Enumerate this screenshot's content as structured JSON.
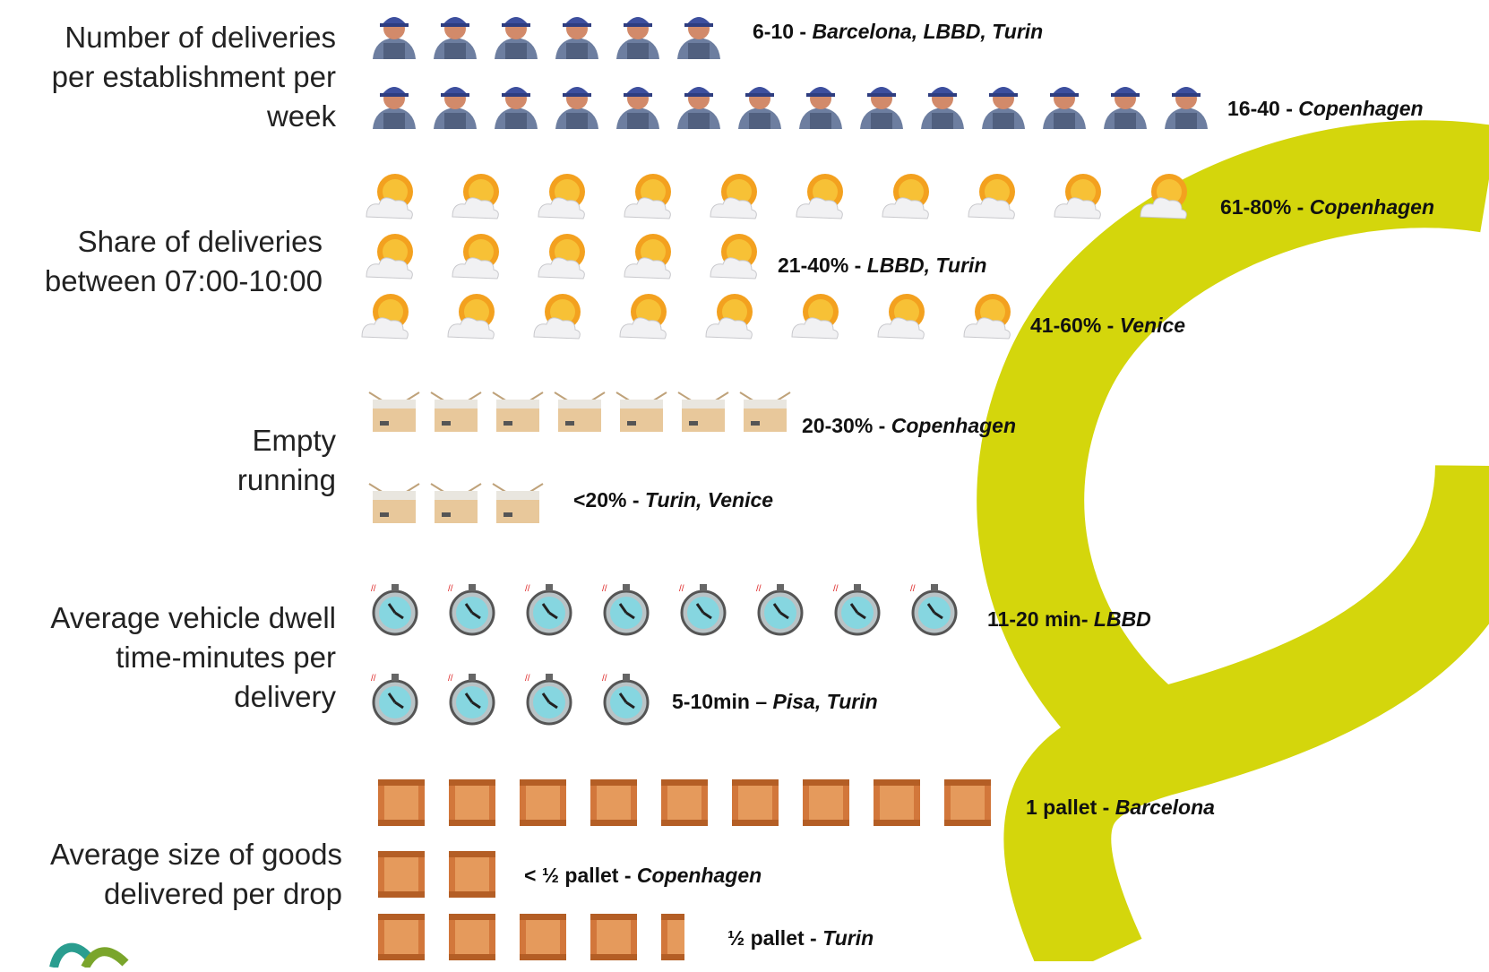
{
  "rows": [
    {
      "label": "Number of deliveries per establishment per week",
      "icon": "delivery-man-icon",
      "groups": [
        {
          "count": 6,
          "range": "6-10",
          "sep": " - ",
          "cities": "Barcelona, LBBD, Turin"
        },
        {
          "count": 14,
          "range": "16-40",
          "sep": " - ",
          "cities": "Copenhagen"
        }
      ]
    },
    {
      "label": "Share of deliveries between 07:00-10:00",
      "icon": "sun-cloud-icon",
      "groups": [
        {
          "count": 10,
          "range": "61-80%",
          "sep": " - ",
          "cities": "Copenhagen"
        },
        {
          "count": 5,
          "range": "21-40%",
          "sep": " - ",
          "cities": "LBBD, Turin"
        },
        {
          "count": 8,
          "range": "41-60%",
          "sep": " - ",
          "cities": "Venice"
        }
      ]
    },
    {
      "label": "Empty running",
      "icon": "empty-box-icon",
      "groups": [
        {
          "count": 7,
          "range": "20-30%",
          "sep": " - ",
          "cities": "Copenhagen"
        },
        {
          "count": 3,
          "range": "<20%",
          "sep": " - ",
          "cities": "Turin, Venice"
        }
      ]
    },
    {
      "label": "Average vehicle dwell time-minutes per delivery",
      "icon": "stopwatch-icon",
      "groups": [
        {
          "count": 8,
          "range": "11-20 min",
          "sep": "- ",
          "cities": "LBBD"
        },
        {
          "count": 4,
          "range": "5-10min",
          "sep": " – ",
          "cities": "Pisa, Turin"
        }
      ]
    },
    {
      "label": "Average size of goods delivered per drop",
      "icon": "crate-icon",
      "groups": [
        {
          "count": 9,
          "range": "1 pallet",
          "sep": " - ",
          "cities": "Barcelona"
        },
        {
          "count": 2,
          "range": "< ½ pallet",
          "sep": " - ",
          "cities": "Copenhagen"
        },
        {
          "count": 4.5,
          "range": "½ pallet",
          "sep": " - ",
          "cities": "Turin"
        }
      ]
    }
  ],
  "colors": {
    "accent_ring": "#d4d60c",
    "text": "#111111"
  }
}
